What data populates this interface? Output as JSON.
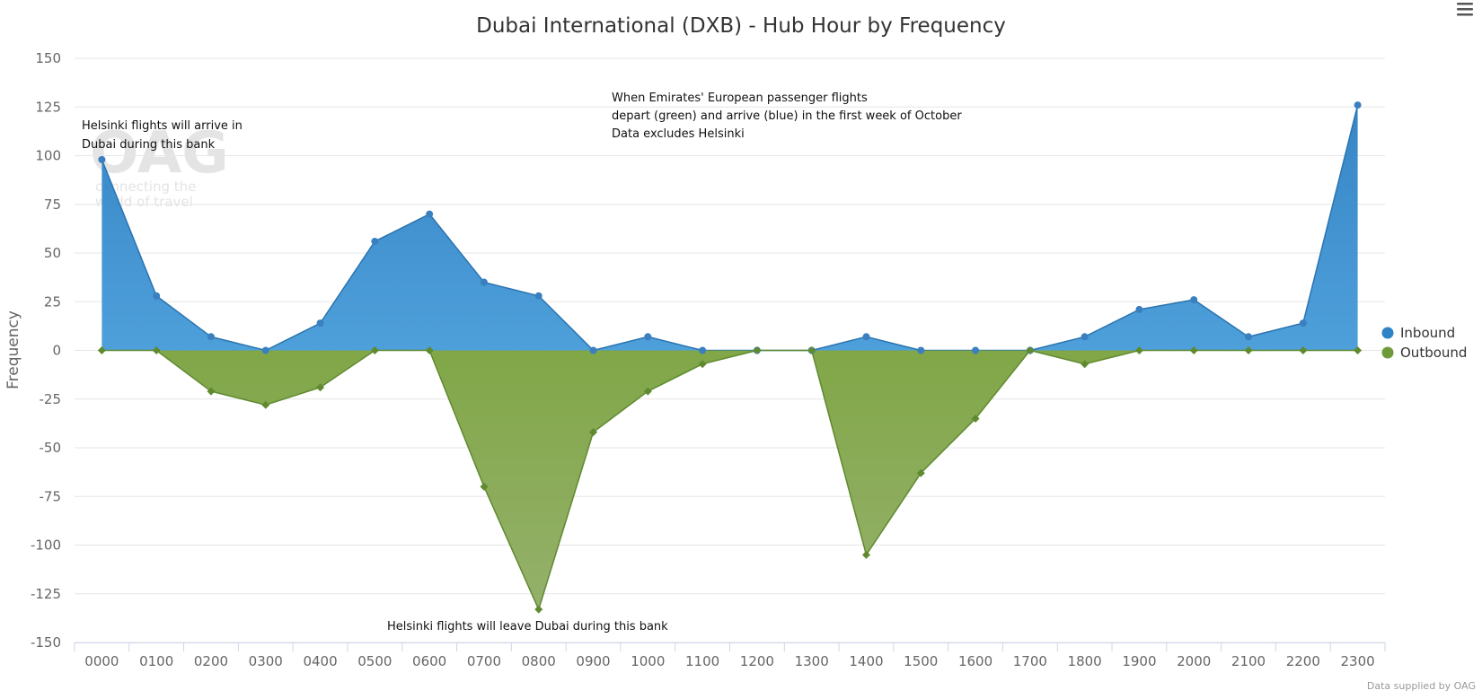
{
  "chart_data": {
    "type": "area",
    "title": "Dubai International (DXB) - Hub Hour by Frequency",
    "xlabel": "",
    "ylabel": "Frequency",
    "ylim": [
      -150,
      150
    ],
    "yticks": [
      150,
      125,
      100,
      75,
      50,
      25,
      0,
      -25,
      -50,
      -75,
      -100,
      -125,
      -150
    ],
    "grid": true,
    "legend_position": "right",
    "categories": [
      "0000",
      "0100",
      "0200",
      "0300",
      "0400",
      "0500",
      "0600",
      "0700",
      "0800",
      "0900",
      "1000",
      "1100",
      "1200",
      "1300",
      "1400",
      "1500",
      "1600",
      "1700",
      "1800",
      "1900",
      "2000",
      "2100",
      "2200",
      "2300"
    ],
    "series": [
      {
        "name": "Inbound",
        "color": "#2e84c6",
        "marker": "circle",
        "values": [
          98,
          28,
          7,
          0,
          14,
          56,
          70,
          35,
          28,
          0,
          7,
          0,
          0,
          0,
          7,
          0,
          0,
          0,
          7,
          21,
          26,
          7,
          14,
          126
        ]
      },
      {
        "name": "Outbound",
        "color": "#6f9a3a",
        "marker": "diamond",
        "values": [
          0,
          0,
          -21,
          -28,
          -19,
          0,
          0,
          -70,
          -133,
          -42,
          -21,
          -7,
          0,
          0,
          -105,
          -63,
          -35,
          0,
          -7,
          0,
          0,
          0,
          0,
          0
        ]
      }
    ],
    "annotations": [
      {
        "lines": [
          "Helsinki flights will arrive in",
          "Dubai during this bank"
        ]
      },
      {
        "lines": [
          "When Emirates' European passenger flights",
          "depart (green) and arrive (blue) in the first week of October",
          "Data excludes  Helsinki"
        ]
      },
      {
        "lines": [
          "Helsinki flights will leave Dubai during this bank"
        ]
      }
    ],
    "credit": "Data supplied by OAG"
  },
  "watermark": {
    "logo": "OAG",
    "tagline": [
      "connecting the",
      "world of travel"
    ]
  },
  "colors": {
    "inbound": "#2e84c6",
    "outbound": "#6f9a3a",
    "grid": "#e6e6e6",
    "axis": "#ccd6eb"
  }
}
